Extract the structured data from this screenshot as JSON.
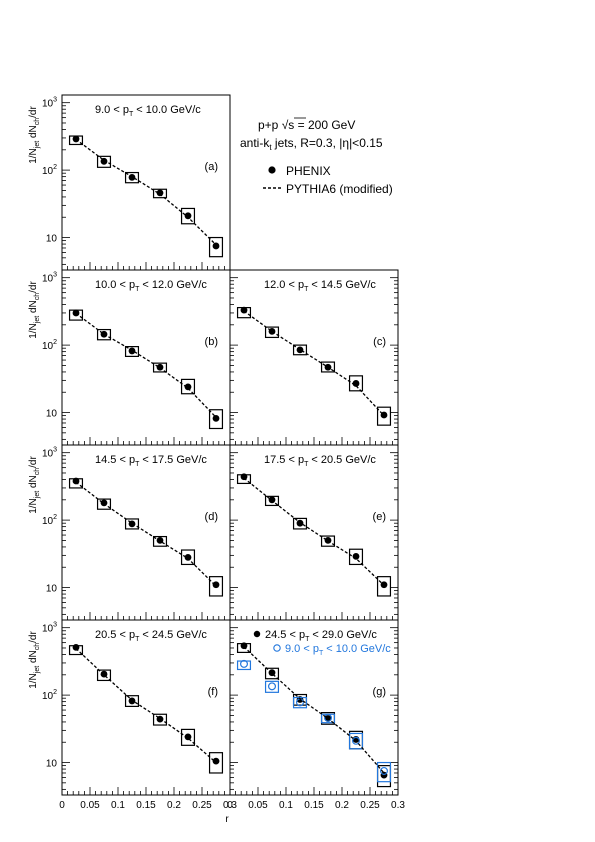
{
  "figure": {
    "ylabel_html": [
      "1/N",
      "jet",
      " dN",
      "ch",
      "/dr"
    ],
    "xlabel": "r",
    "x_ticks": [
      "0",
      "0.05",
      "0.1",
      "0.15",
      "0.2",
      "0.25",
      "0.3"
    ],
    "y_ticks": [
      "10",
      "10",
      "10"
    ],
    "y_tick_exp": [
      "",
      "2",
      "3"
    ]
  },
  "legend": {
    "system_prefix": "p+p ",
    "system_sqrt": "√s",
    "system_suffix": " = 200 GeV",
    "jets_prefix": "anti-k",
    "jets_sub": "t",
    "jets_suffix": " jets, R=0.3, |η|<0.15",
    "data_label": "PHENIX",
    "model_label": "PYTHIA6 (modified)"
  },
  "chart_data": [
    {
      "type": "scatter",
      "panel": "(a)",
      "pt_lo": "9.0",
      "pt_hi": "10.0",
      "xlim": [
        0,
        0.3
      ],
      "ylim": [
        3.3,
        1300
      ],
      "yscale": "log",
      "series": [
        {
          "name": "PHENIX",
          "x": [
            0.025,
            0.075,
            0.125,
            0.175,
            0.225,
            0.275
          ],
          "y": [
            290,
            135,
            78,
            46,
            21,
            7.5
          ],
          "syst_lo": [
            240,
            110,
            65,
            39,
            16,
            5.2
          ],
          "syst_hi": [
            320,
            160,
            92,
            52,
            27,
            10
          ]
        },
        {
          "name": "PYTHIA6 (modified)",
          "x": [
            0.025,
            0.075,
            0.125,
            0.175,
            0.225,
            0.275
          ],
          "y": [
            285,
            140,
            80,
            44,
            20,
            7.8
          ]
        }
      ]
    },
    {
      "type": "scatter",
      "panel": "(b)",
      "pt_lo": "10.0",
      "pt_hi": "12.0",
      "xlim": [
        0,
        0.3
      ],
      "ylim": [
        3.3,
        1300
      ],
      "yscale": "log",
      "series": [
        {
          "name": "PHENIX",
          "x": [
            0.025,
            0.075,
            0.125,
            0.175,
            0.225,
            0.275
          ],
          "y": [
            300,
            145,
            82,
            47,
            24,
            8.2
          ],
          "syst_lo": [
            235,
            120,
            68,
            40,
            19,
            5.8
          ],
          "syst_hi": [
            330,
            170,
            95,
            54,
            31,
            11
          ]
        },
        {
          "name": "PYTHIA6 (modified)",
          "x": [
            0.025,
            0.075,
            0.125,
            0.175,
            0.225,
            0.275
          ],
          "y": [
            295,
            145,
            84,
            46,
            23,
            8.5
          ]
        }
      ]
    },
    {
      "type": "scatter",
      "panel": "(c)",
      "pt_lo": "12.0",
      "pt_hi": "14.5",
      "xlim": [
        0,
        0.3
      ],
      "ylim": [
        3.3,
        1300
      ],
      "yscale": "log",
      "series": [
        {
          "name": "PHENIX",
          "x": [
            0.025,
            0.075,
            0.125,
            0.175,
            0.225,
            0.275
          ],
          "y": [
            330,
            160,
            85,
            47,
            27,
            9.2
          ],
          "syst_lo": [
            255,
            130,
            72,
            40,
            21,
            6.5
          ],
          "syst_hi": [
            360,
            185,
            100,
            56,
            35,
            12
          ]
        },
        {
          "name": "PYTHIA6 (modified)",
          "x": [
            0.025,
            0.075,
            0.125,
            0.175,
            0.225,
            0.275
          ],
          "y": [
            320,
            160,
            86,
            47,
            25,
            9
          ]
        }
      ]
    },
    {
      "type": "scatter",
      "panel": "(d)",
      "pt_lo": "14.5",
      "pt_hi": "17.5",
      "xlim": [
        0,
        0.3
      ],
      "ylim": [
        3.3,
        1300
      ],
      "yscale": "log",
      "series": [
        {
          "name": "PHENIX",
          "x": [
            0.025,
            0.075,
            0.125,
            0.175,
            0.225,
            0.275
          ],
          "y": [
            380,
            180,
            88,
            50,
            28,
            11
          ],
          "syst_lo": [
            300,
            145,
            74,
            41,
            22,
            7.5
          ],
          "syst_hi": [
            410,
            205,
            104,
            57,
            36,
            14.5
          ]
        },
        {
          "name": "PYTHIA6 (modified)",
          "x": [
            0.025,
            0.075,
            0.125,
            0.175,
            0.225,
            0.275
          ],
          "y": [
            365,
            175,
            90,
            49,
            27,
            10.5
          ]
        }
      ]
    },
    {
      "type": "scatter",
      "panel": "(e)",
      "pt_lo": "17.5",
      "pt_hi": "20.5",
      "xlim": [
        0,
        0.3
      ],
      "ylim": [
        3.3,
        1300
      ],
      "yscale": "log",
      "series": [
        {
          "name": "PHENIX",
          "x": [
            0.025,
            0.075,
            0.125,
            0.175,
            0.225,
            0.275
          ],
          "y": [
            440,
            200,
            90,
            50,
            29,
            11
          ],
          "syst_lo": [
            350,
            165,
            74,
            41,
            22,
            7.5
          ],
          "syst_hi": [
            470,
            225,
            106,
            58,
            37,
            14.5
          ]
        },
        {
          "name": "PYTHIA6 (modified)",
          "x": [
            0.025,
            0.075,
            0.125,
            0.175,
            0.225,
            0.275
          ],
          "y": [
            420,
            195,
            92,
            49,
            27,
            10.8
          ]
        }
      ]
    },
    {
      "type": "scatter",
      "panel": "(f)",
      "pt_lo": "20.5",
      "pt_hi": "24.5",
      "xlim": [
        0,
        0.3
      ],
      "ylim": [
        3.3,
        1300
      ],
      "yscale": "log",
      "series": [
        {
          "name": "PHENIX",
          "x": [
            0.025,
            0.075,
            0.125,
            0.175,
            0.225,
            0.275
          ],
          "y": [
            510,
            205,
            82,
            44,
            24,
            10.5
          ],
          "syst_lo": [
            400,
            165,
            68,
            36,
            18,
            7
          ],
          "syst_hi": [
            540,
            235,
            98,
            52,
            31,
            14
          ]
        },
        {
          "name": "PYTHIA6 (modified)",
          "x": [
            0.025,
            0.075,
            0.125,
            0.175,
            0.225,
            0.275
          ],
          "y": [
            490,
            200,
            84,
            45,
            23,
            10
          ]
        }
      ]
    },
    {
      "type": "scatter",
      "panel": "(g)",
      "pt_lo": "24.5",
      "pt_hi": "29.0",
      "pt_lo2": "9.0",
      "pt_hi2": "10.0",
      "xlim": [
        0,
        0.3
      ],
      "ylim": [
        3.3,
        1300
      ],
      "yscale": "log",
      "series": [
        {
          "name": "PHENIX 24.5 < pT < 29.0",
          "x": [
            0.025,
            0.075,
            0.125,
            0.175,
            0.225,
            0.275
          ],
          "y": [
            540,
            215,
            86,
            45,
            22,
            6.5
          ],
          "syst_lo": [
            430,
            175,
            71,
            37,
            16,
            4.4
          ],
          "syst_hi": [
            580,
            250,
            102,
            55,
            29,
            9
          ]
        },
        {
          "name": "PHENIX 9.0 < pT < 10.0",
          "color": "#2277dd",
          "marker": "open-circle",
          "x": [
            0.025,
            0.075,
            0.125,
            0.175,
            0.225,
            0.275
          ],
          "y": [
            290,
            135,
            78,
            46,
            21,
            7.5
          ],
          "syst_lo": [
            240,
            110,
            65,
            39,
            16,
            5.2
          ],
          "syst_hi": [
            320,
            160,
            92,
            52,
            27,
            10
          ]
        },
        {
          "name": "PYTHIA6 (modified)",
          "x": [
            0.025,
            0.075,
            0.125,
            0.175,
            0.225,
            0.275
          ],
          "y": [
            520,
            210,
            88,
            45,
            21,
            7
          ]
        }
      ]
    }
  ],
  "colors": {
    "blue": "#2277dd"
  }
}
